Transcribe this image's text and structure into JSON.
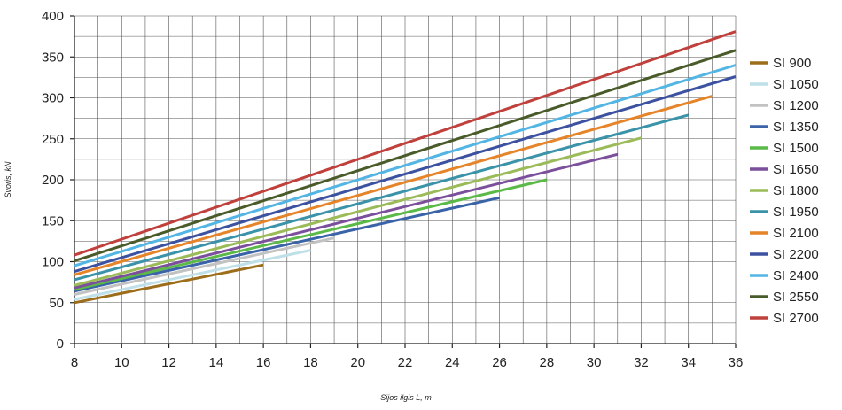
{
  "chart_data": {
    "type": "line",
    "xlabel": "Sijos ilgis L, m",
    "ylabel": "Svoris, kN",
    "xlim": [
      8,
      36
    ],
    "ylim": [
      0,
      400
    ],
    "xticks": [
      "8",
      "10",
      "12",
      "14",
      "16",
      "18",
      "20",
      "22",
      "24",
      "26",
      "28",
      "30",
      "32",
      "34",
      "36"
    ],
    "yticks": [
      "0",
      "50",
      "100",
      "150",
      "200",
      "250",
      "300",
      "350",
      "400"
    ],
    "grid": true,
    "legend": "right",
    "series": [
      {
        "name": "SI 900",
        "color": "#9c6e1c",
        "x": [
          8,
          16
        ],
        "y": [
          50,
          96
        ]
      },
      {
        "name": "SI 1050",
        "color": "#bfe0e8",
        "x": [
          8,
          18
        ],
        "y": [
          54,
          114
        ]
      },
      {
        "name": "SI 1200",
        "color": "#c2c2c2",
        "x": [
          8,
          19
        ],
        "y": [
          60,
          129
        ]
      },
      {
        "name": "SI 1350",
        "color": "#3a63a8",
        "x": [
          8,
          26
        ],
        "y": [
          64,
          178
        ]
      },
      {
        "name": "SI 1500",
        "color": "#5ab947",
        "x": [
          8,
          28
        ],
        "y": [
          66,
          200
        ]
      },
      {
        "name": "SI 1650",
        "color": "#7b4f9c",
        "x": [
          8,
          31
        ],
        "y": [
          68,
          231
        ]
      },
      {
        "name": "SI 1800",
        "color": "#9bbb59",
        "x": [
          8,
          32
        ],
        "y": [
          71,
          251
        ]
      },
      {
        "name": "SI 1950",
        "color": "#3a93a8",
        "x": [
          8,
          34
        ],
        "y": [
          78,
          279
        ]
      },
      {
        "name": "SI 2100",
        "color": "#e6842a",
        "x": [
          8,
          35
        ],
        "y": [
          84,
          302
        ]
      },
      {
        "name": "SI 2200",
        "color": "#3c52a0",
        "x": [
          8,
          36
        ],
        "y": [
          88,
          326
        ]
      },
      {
        "name": "SI 2400",
        "color": "#52b5e3",
        "x": [
          8,
          36
        ],
        "y": [
          95,
          340
        ]
      },
      {
        "name": "SI 2550",
        "color": "#4a5b2a",
        "x": [
          8,
          36
        ],
        "y": [
          101,
          358
        ]
      },
      {
        "name": "SI 2700",
        "color": "#c0403c",
        "x": [
          8,
          36
        ],
        "y": [
          108,
          381
        ]
      }
    ]
  }
}
